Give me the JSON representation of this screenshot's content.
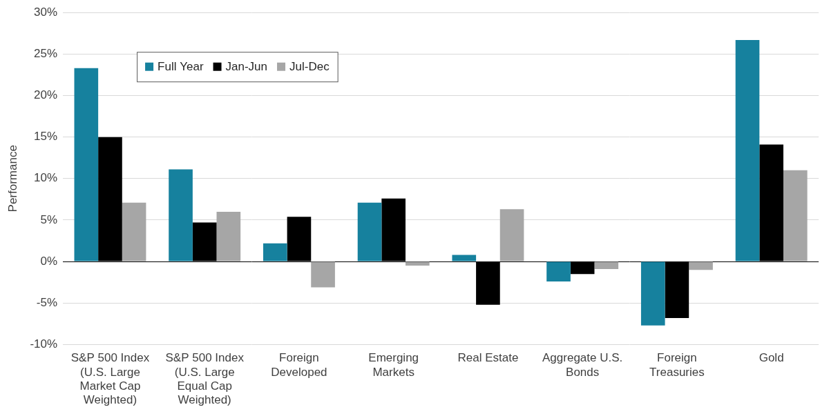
{
  "chart_data": {
    "type": "bar",
    "y_label": "Performance",
    "categories": [
      "S&P 500 Index (U.S. Large Market Cap Weighted)",
      "S&P 500 Index (U.S. Large Equal Cap Weighted)",
      "Foreign Developed",
      "Emerging Markets",
      "Real Estate",
      "Aggregate U.S. Bonds",
      "Foreign Treasuries",
      "Gold"
    ],
    "series": [
      {
        "name": "Full Year",
        "color": "#16819e",
        "values": [
          23.3,
          11.1,
          2.2,
          7.1,
          0.8,
          -2.4,
          -7.7,
          26.7
        ]
      },
      {
        "name": "Jan-Jun",
        "color": "#000000",
        "values": [
          15.0,
          4.7,
          5.4,
          7.6,
          -5.2,
          -1.5,
          -6.8,
          14.1
        ]
      },
      {
        "name": "Jul-Dec",
        "color": "#a6a6a6",
        "values": [
          7.1,
          6.0,
          -3.1,
          -0.5,
          6.3,
          -0.9,
          -1.0,
          11.0
        ]
      }
    ],
    "ylim": [
      -10,
      30
    ],
    "yticks": [
      {
        "value": -10,
        "label": "-10%"
      },
      {
        "value": -5,
        "label": "-5%"
      },
      {
        "value": 0,
        "label": "0%"
      },
      {
        "value": 5,
        "label": "5%"
      },
      {
        "value": 10,
        "label": "10%"
      },
      {
        "value": 15,
        "label": "15%"
      },
      {
        "value": 20,
        "label": "20%"
      },
      {
        "value": 25,
        "label": "25%"
      },
      {
        "value": 30,
        "label": "30%"
      }
    ],
    "grid": true,
    "legend": "upper left"
  }
}
